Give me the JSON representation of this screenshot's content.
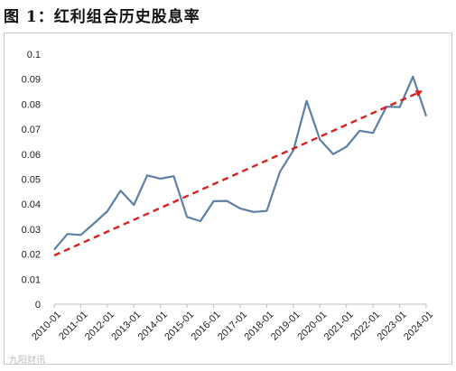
{
  "figure_title": "图 1：红利组合历史股息率",
  "watermark": "九阳财讯",
  "colors": {
    "series": "#5b7fa6",
    "trend": "#d92020",
    "axis": "#bfbfbf"
  },
  "chart_data": {
    "type": "line",
    "title": "",
    "xlabel": "",
    "ylabel": "",
    "ylim": [
      0,
      0.1
    ],
    "y_ticks": [
      "0",
      "0.01",
      "0.02",
      "0.03",
      "0.04",
      "0.05",
      "0.06",
      "0.07",
      "0.08",
      "0.09",
      "0.1"
    ],
    "x_ticks": [
      "2010-01",
      "2011-01",
      "2012-01",
      "2013-01",
      "2014-01",
      "2015-01",
      "2016-01",
      "2017-01",
      "2018-01",
      "2019-01",
      "2020-01",
      "2021-01",
      "2022-01",
      "2023-01",
      "2024-01"
    ],
    "grid": false,
    "legend": "none",
    "series": [
      {
        "x": [
          2010.0,
          2010.5,
          2011.0,
          2011.5,
          2012.0,
          2012.5,
          2013.0,
          2013.5,
          2014.0,
          2014.5,
          2015.0,
          2015.5,
          2016.0,
          2016.5,
          2017.0,
          2017.5,
          2018.0,
          2018.5,
          2019.0,
          2019.5,
          2020.0,
          2020.5,
          2021.0,
          2021.5,
          2022.0,
          2022.5,
          2023.0,
          2023.5,
          2024.0
        ],
        "values": [
          0.0218,
          0.0281,
          0.0277,
          0.0323,
          0.0372,
          0.0454,
          0.0397,
          0.0515,
          0.0502,
          0.0512,
          0.0349,
          0.0332,
          0.0412,
          0.0413,
          0.0383,
          0.0369,
          0.0373,
          0.053,
          0.0615,
          0.0813,
          0.0658,
          0.06,
          0.063,
          0.0694,
          0.0685,
          0.079,
          0.0788,
          0.091,
          0.0752
        ]
      }
    ],
    "trendline": {
      "style": "dashed-arrow",
      "from": {
        "x": 2010.0,
        "y": 0.0195
      },
      "to": {
        "x": 2023.75,
        "y": 0.0848
      }
    }
  }
}
